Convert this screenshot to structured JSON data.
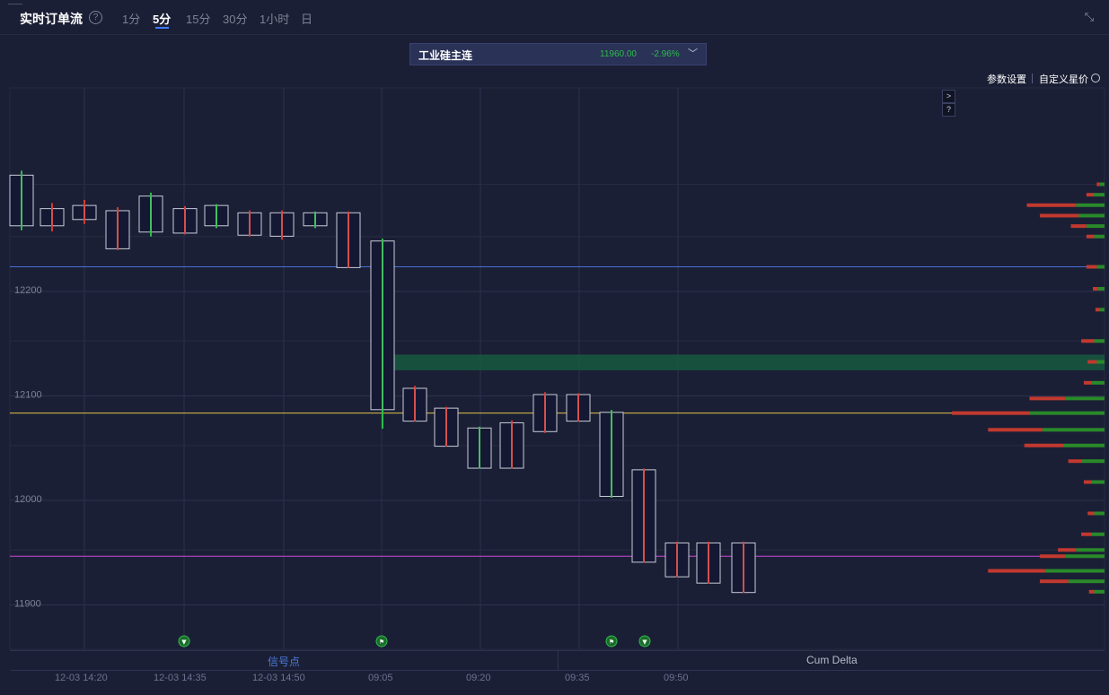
{
  "header": {
    "title": "实时订单流",
    "help_icon": "?",
    "timeframes": [
      "1分",
      "5分",
      "15分",
      "30分",
      "1小时",
      "日"
    ],
    "active_timeframe": "5分"
  },
  "instrument": {
    "name": "工业硅主连",
    "price": "11960.00",
    "change": "-2.96%"
  },
  "toolbar": {
    "params_label": "参数设置",
    "custom_label": "自定义星价",
    "expand_label": ">",
    "question_label": "?"
  },
  "bottom_tabs": {
    "left": "信号点",
    "right": "Cum Delta"
  },
  "colors": {
    "background": "#1b1f35",
    "up": "#2dbb4b",
    "down": "#d63a34",
    "accent": "#3f7bff",
    "volume_profile_buy": "#2a8a2a",
    "volume_profile_sell": "#c2392f"
  },
  "chart_data": {
    "type": "footprint",
    "y_axis": {
      "ticks": [
        12200,
        12100,
        12000,
        11900
      ]
    },
    "x_axis": {
      "ticks": [
        "12-03 14:20",
        "12-03 14:35",
        "12-03 14:50",
        "09:05",
        "09:20",
        "09:35",
        "09:50"
      ]
    },
    "reference_lines": [
      {
        "name": "blue-level",
        "price": 12221,
        "color": "#4a6fd8"
      },
      {
        "name": "yellow-level",
        "price": 12081,
        "color": "#e0c34a"
      },
      {
        "name": "magenta-level",
        "price": 11944,
        "color": "#c84bd6"
      }
    ],
    "value_area_band": {
      "low": 12122,
      "high": 12137
    },
    "candles": [
      {
        "time": "14:20a",
        "open": 12262,
        "close": 12307,
        "high": 12313,
        "low": 12256,
        "dir": "up"
      },
      {
        "time": "14:20b",
        "open": 12275,
        "close": 12262,
        "high": 12282,
        "low": 12255,
        "dir": "down"
      },
      {
        "time": "14:25",
        "open": 12278,
        "close": 12268,
        "high": 12285,
        "low": 12262,
        "dir": "down"
      },
      {
        "time": "14:30",
        "open": 12273,
        "close": 12240,
        "high": 12278,
        "low": 12237,
        "dir": "down"
      },
      {
        "time": "14:35a",
        "open": 12256,
        "close": 12287,
        "high": 12292,
        "low": 12250,
        "dir": "up"
      },
      {
        "time": "14:35b",
        "open": 12275,
        "close": 12255,
        "high": 12279,
        "low": 12252,
        "dir": "down"
      },
      {
        "time": "14:40",
        "open": 12262,
        "close": 12278,
        "high": 12281,
        "low": 12258,
        "dir": "up"
      },
      {
        "time": "14:45",
        "open": 12271,
        "close": 12253,
        "high": 12275,
        "low": 12250,
        "dir": "down"
      },
      {
        "time": "14:50",
        "open": 12271,
        "close": 12252,
        "high": 12275,
        "low": 12247,
        "dir": "down"
      },
      {
        "time": "14:55a",
        "open": 12262,
        "close": 12271,
        "high": 12274,
        "low": 12258,
        "dir": "up"
      },
      {
        "time": "14:55b",
        "open": 12271,
        "close": 12222,
        "high": 12274,
        "low": 12220,
        "dir": "down"
      },
      {
        "time": "09:05",
        "open": 12086,
        "close": 12244,
        "high": 12248,
        "low": 12066,
        "dir": "up"
      },
      {
        "time": "09:10",
        "open": 12103,
        "close": 12075,
        "high": 12107,
        "low": 12073,
        "dir": "down"
      },
      {
        "time": "09:15",
        "open": 12084,
        "close": 12051,
        "high": 12087,
        "low": 12049,
        "dir": "down"
      },
      {
        "time": "09:20a",
        "open": 12065,
        "close": 12030,
        "high": 12068,
        "low": 12028,
        "dir": "up"
      },
      {
        "time": "09:20b",
        "open": 12070,
        "close": 12030,
        "high": 12074,
        "low": 12028,
        "dir": "down"
      },
      {
        "time": "09:30",
        "open": 12097,
        "close": 12065,
        "high": 12101,
        "low": 12062,
        "dir": "down"
      },
      {
        "time": "09:35",
        "open": 12097,
        "close": 12075,
        "high": 12100,
        "low": 12073,
        "dir": "down"
      },
      {
        "time": "09:40",
        "open": 12080,
        "close": 12003,
        "high": 12084,
        "low": 12000,
        "dir": "up"
      },
      {
        "time": "09:45",
        "open": 12025,
        "close": 11940,
        "high": 12028,
        "low": 11938,
        "dir": "down"
      },
      {
        "time": "09:50a",
        "open": 11955,
        "close": 11926,
        "high": 11958,
        "low": 11924,
        "dir": "down"
      },
      {
        "time": "09:50b",
        "open": 11955,
        "close": 11920,
        "high": 11958,
        "low": 11918,
        "dir": "down"
      },
      {
        "time": "09:55",
        "open": 11955,
        "close": 11911,
        "high": 11958,
        "low": 11909,
        "dir": "down"
      }
    ],
    "signals": [
      {
        "time": "14:35",
        "dir": "down",
        "color": "#2dbb4b"
      },
      {
        "time": "09:05",
        "dir": "flag",
        "color": "#2dbb4b"
      },
      {
        "time": "09:40",
        "dir": "flag",
        "color": "#2dbb4b"
      },
      {
        "time": "09:45",
        "dir": "down",
        "color": "#2dbb4b"
      }
    ],
    "volume_profile": [
      {
        "price": 12300,
        "buy": 4,
        "sell": 2
      },
      {
        "price": 12290,
        "buy": 9,
        "sell": 5
      },
      {
        "price": 12280,
        "buy": 22,
        "sell": 38
      },
      {
        "price": 12270,
        "buy": 20,
        "sell": 30
      },
      {
        "price": 12260,
        "buy": 14,
        "sell": 12
      },
      {
        "price": 12250,
        "buy": 8,
        "sell": 6
      },
      {
        "price": 12221,
        "buy": 6,
        "sell": 8
      },
      {
        "price": 12200,
        "buy": 5,
        "sell": 4
      },
      {
        "price": 12180,
        "buy": 4,
        "sell": 3
      },
      {
        "price": 12150,
        "buy": 8,
        "sell": 10
      },
      {
        "price": 12130,
        "buy": 6,
        "sell": 7
      },
      {
        "price": 12110,
        "buy": 10,
        "sell": 6
      },
      {
        "price": 12095,
        "buy": 30,
        "sell": 28
      },
      {
        "price": 12081,
        "buy": 58,
        "sell": 60
      },
      {
        "price": 12065,
        "buy": 48,
        "sell": 42
      },
      {
        "price": 12050,
        "buy": 32,
        "sell": 30
      },
      {
        "price": 12035,
        "buy": 18,
        "sell": 10
      },
      {
        "price": 12015,
        "buy": 10,
        "sell": 6
      },
      {
        "price": 11985,
        "buy": 8,
        "sell": 5
      },
      {
        "price": 11965,
        "buy": 10,
        "sell": 8
      },
      {
        "price": 11950,
        "buy": 22,
        "sell": 14
      },
      {
        "price": 11944,
        "buy": 30,
        "sell": 20
      },
      {
        "price": 11930,
        "buy": 46,
        "sell": 44
      },
      {
        "price": 11920,
        "buy": 28,
        "sell": 22
      },
      {
        "price": 11910,
        "buy": 8,
        "sell": 4
      }
    ]
  }
}
